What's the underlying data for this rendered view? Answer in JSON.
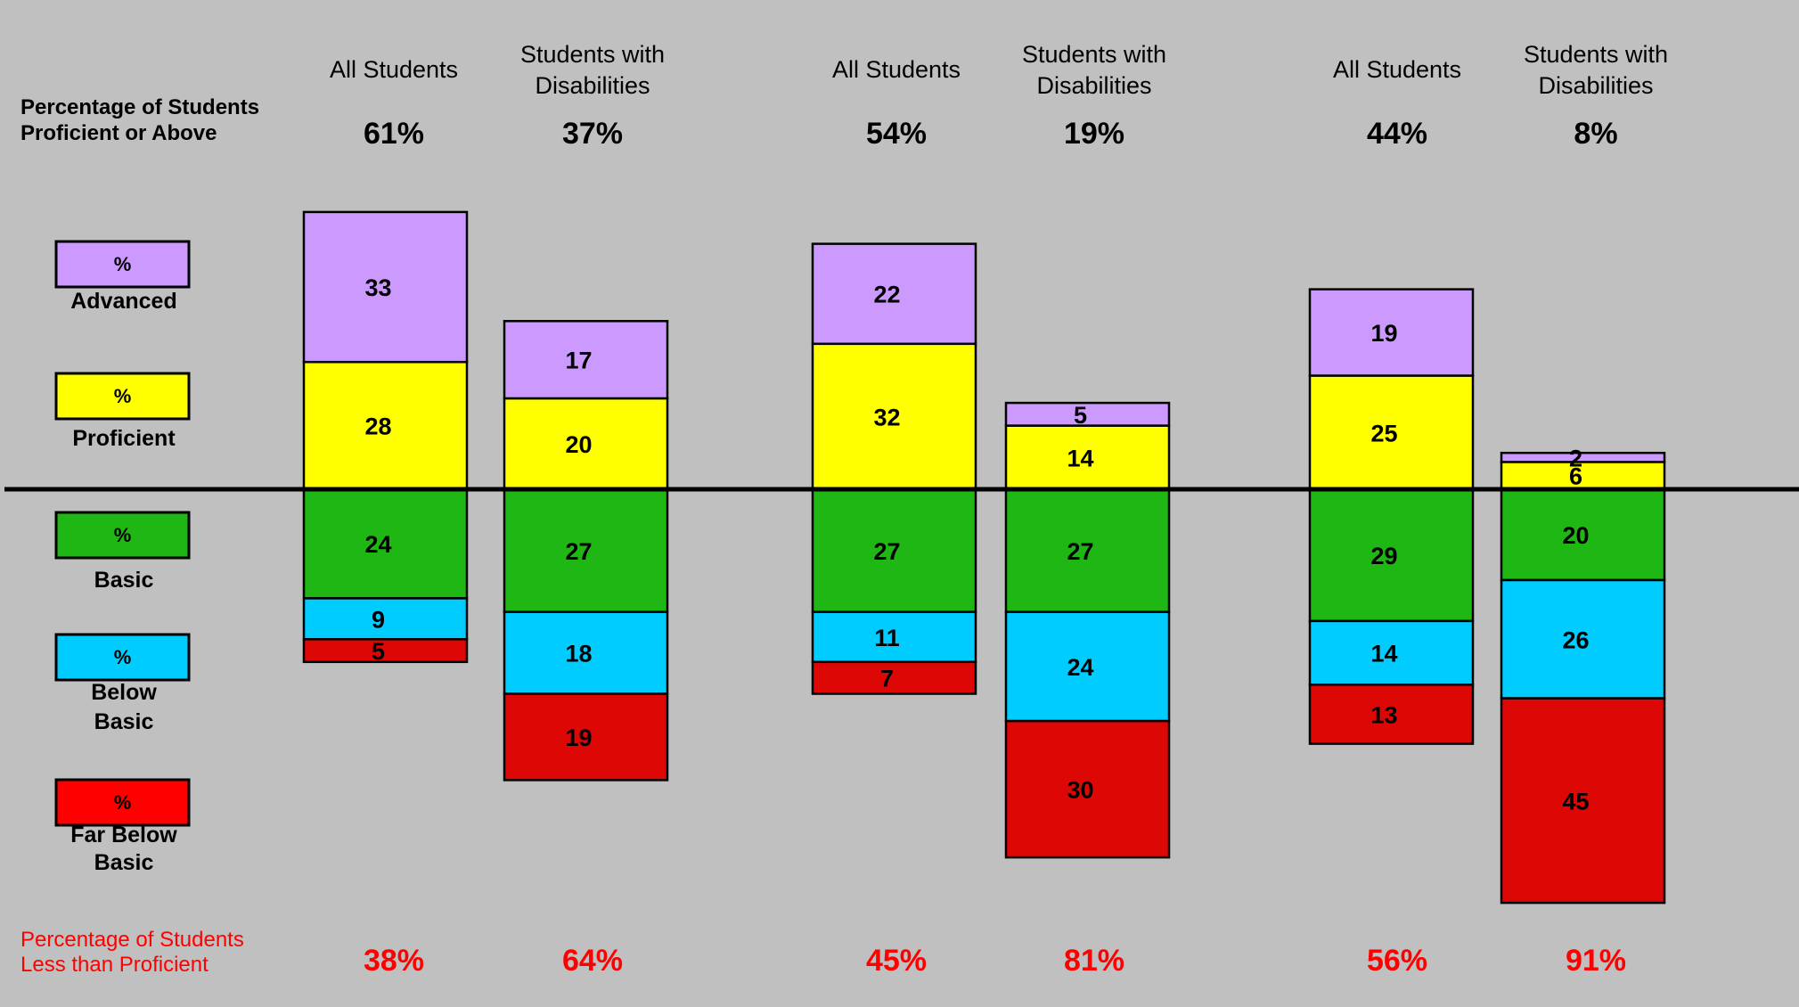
{
  "header": {
    "proficient_label_line1": "Percentage of Students",
    "proficient_label_line2": "Proficient or Above"
  },
  "footer": {
    "less_label_line1": "Percentage of Students",
    "less_label_line2": "Less than Proficient"
  },
  "legend": [
    {
      "symbol": "%",
      "label_lines": [
        "Advanced"
      ],
      "color": "#CC99FF"
    },
    {
      "symbol": "%",
      "label_lines": [
        "Proficient"
      ],
      "color": "#FFFF00"
    },
    {
      "symbol": "%",
      "label_lines": [
        "Basic"
      ],
      "color": "#1FB714"
    },
    {
      "symbol": "%",
      "label_lines": [
        "Below",
        "Basic"
      ],
      "color": "#00CCFF"
    },
    {
      "symbol": "%",
      "label_lines": [
        "Far Below",
        "Basic"
      ],
      "color": "#FF0000"
    }
  ],
  "colors": {
    "background": "#C0C0C0",
    "advanced": "#CC99FF",
    "proficient": "#FFFF00",
    "basic": "#1FB714",
    "below_basic": "#00CCFF",
    "far_below_basic": "#DD0806",
    "footer_text": "#FF0000",
    "baseline": "#000000"
  },
  "chart_data": {
    "type": "bar",
    "stacked": "diverging",
    "grid": false,
    "legend_position": "left",
    "categories": [
      {
        "line1": "All Students",
        "line2": "",
        "proficient_pct": "61%",
        "less_pct": "38%"
      },
      {
        "line1": "Students with",
        "line2": "Disabilities",
        "proficient_pct": "37%",
        "less_pct": "64%"
      },
      {
        "line1": "All Students",
        "line2": "",
        "proficient_pct": "54%",
        "less_pct": "45%"
      },
      {
        "line1": "Students with",
        "line2": "Disabilities",
        "proficient_pct": "19%",
        "less_pct": "81%"
      },
      {
        "line1": "All Students",
        "line2": "",
        "proficient_pct": "44%",
        "less_pct": "56%"
      },
      {
        "line1": "Students with",
        "line2": "Disabilities",
        "proficient_pct": "8%",
        "less_pct": "91%"
      }
    ],
    "series": [
      {
        "key": "advanced",
        "values": [
          33,
          17,
          22,
          5,
          19,
          2
        ],
        "direction": "up"
      },
      {
        "key": "proficient",
        "values": [
          28,
          20,
          32,
          14,
          25,
          6
        ],
        "direction": "up"
      },
      {
        "key": "basic",
        "values": [
          24,
          27,
          27,
          27,
          29,
          20
        ],
        "direction": "down"
      },
      {
        "key": "below_basic",
        "values": [
          9,
          18,
          11,
          24,
          14,
          26
        ],
        "direction": "down"
      },
      {
        "key": "far_below_basic",
        "values": [
          5,
          19,
          7,
          30,
          13,
          45
        ],
        "direction": "down"
      }
    ]
  }
}
